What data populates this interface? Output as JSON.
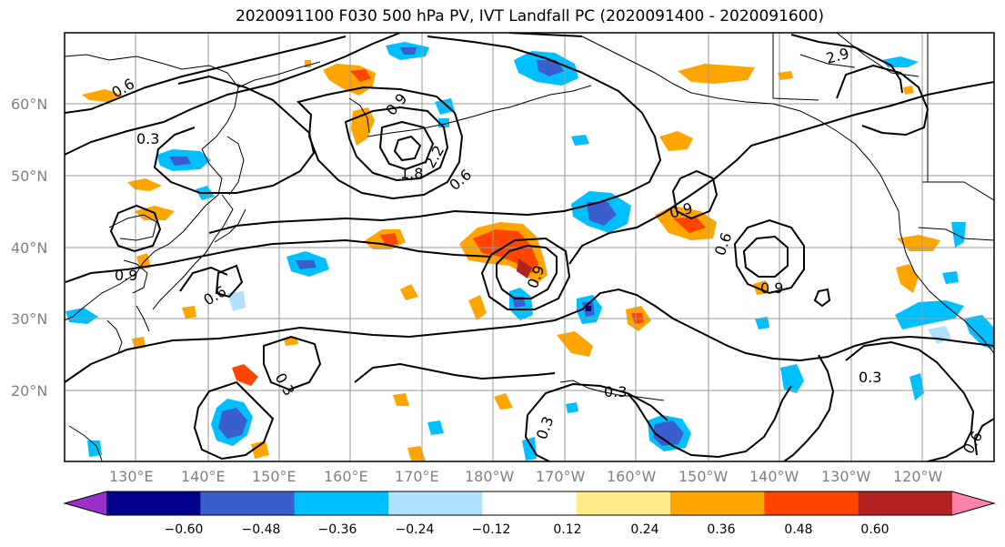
{
  "title": "2020091100 F030 500 hPa PV, IVT Landfall PC (2020091400 - 2020091600)",
  "lat_labels": [
    "60°N",
    "50°N",
    "40°N",
    "30°N",
    "20°N"
  ],
  "lon_labels": [
    "130°E",
    "140°E",
    "150°E",
    "160°E",
    "170°E",
    "180°W",
    "170°W",
    "160°W",
    "150°W",
    "140°W",
    "130°W",
    "120°W"
  ],
  "contour_labels": [
    "0.6",
    "0.9",
    "2.9",
    "0.3",
    "1.8",
    "2.2",
    "0.6",
    "0.9",
    "0.9",
    "0.6",
    "0.9",
    "0.6",
    "0.9",
    "0.3",
    "0.3",
    "0.3",
    "0.3",
    "0.6"
  ],
  "colorbar": {
    "tick_labels": [
      "−0.60",
      "−0.48",
      "−0.36",
      "−0.24",
      "−0.12",
      "0.12",
      "0.24",
      "0.36",
      "0.48",
      "0.60"
    ],
    "colors": [
      "#9932CC",
      "#00008B",
      "#3A5FCD",
      "#00BFFF",
      "#B0E2FF",
      "#FFFFFF",
      "#FFEC8B",
      "#FFA500",
      "#FF4500",
      "#B22222",
      "#FF82AB"
    ]
  }
}
